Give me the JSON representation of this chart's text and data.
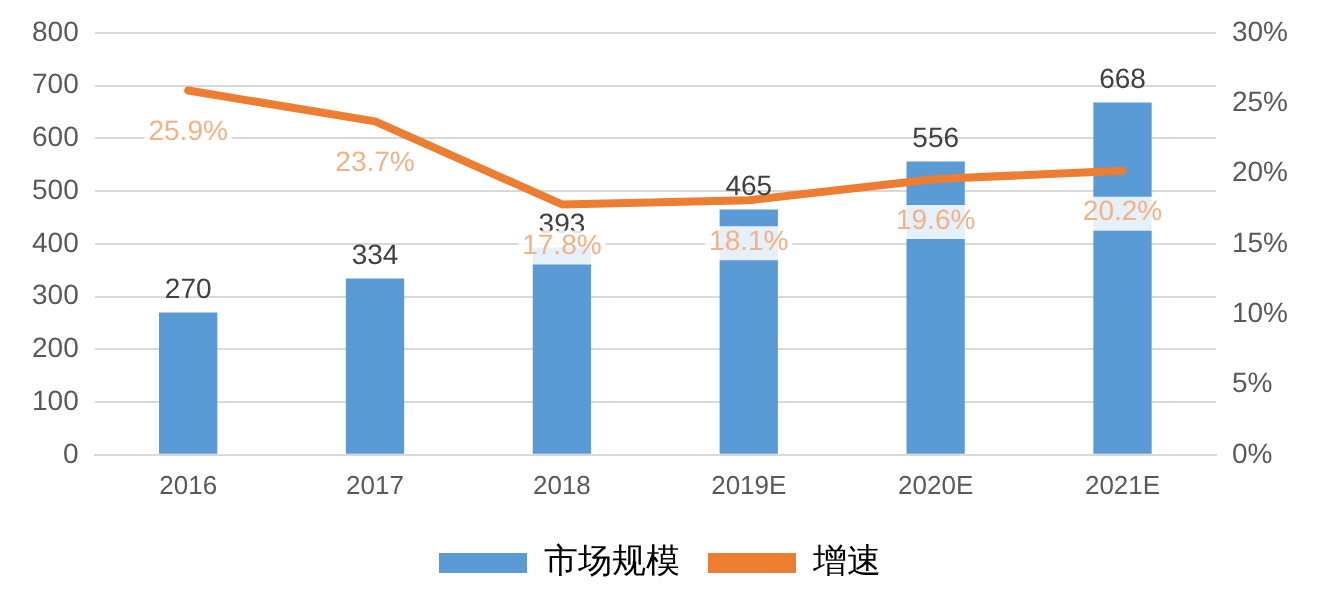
{
  "chart_data": {
    "type": "bar",
    "categories": [
      "2016",
      "2017",
      "2018",
      "2019E",
      "2020E",
      "2021E"
    ],
    "series": [
      {
        "name": "市场规模",
        "color": "#5b9bd5",
        "values": [
          270,
          334,
          393,
          465,
          556,
          668
        ],
        "value_labels": [
          "270",
          "334",
          "393",
          "465",
          "556",
          "668"
        ]
      },
      {
        "name": "增速",
        "type": "line",
        "axis": "y2",
        "color": "#ed7d31",
        "marker": "none",
        "values": [
          25.9,
          23.7,
          17.8,
          18.1,
          19.6,
          20.2
        ],
        "value_labels": [
          "25.9%",
          "23.7%",
          "17.8%",
          "18.1%",
          "19.6%",
          "20.2%"
        ]
      }
    ],
    "ylim": [
      0,
      800
    ],
    "yticks": [
      0,
      100,
      200,
      300,
      400,
      500,
      600,
      700,
      800
    ],
    "y2lim": [
      0,
      30
    ],
    "y2ticks": [
      {
        "value": 0,
        "label": "0%"
      },
      {
        "value": 5,
        "label": "5%"
      },
      {
        "value": 10,
        "label": "10%"
      },
      {
        "value": 15,
        "label": "15%"
      },
      {
        "value": 20,
        "label": "20%"
      },
      {
        "value": 25,
        "label": "25%"
      },
      {
        "value": 30,
        "label": "30%"
      }
    ],
    "grid": "y",
    "legend": "bottom"
  }
}
